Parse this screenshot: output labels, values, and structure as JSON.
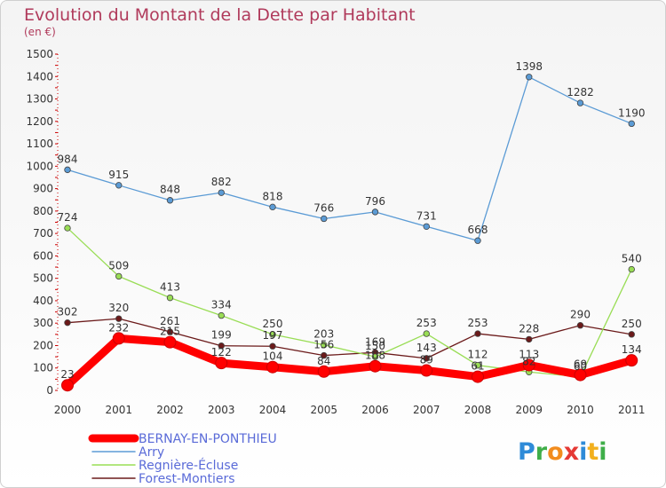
{
  "chart_data": {
    "type": "line",
    "title": "Evolution du Montant de la Dette par Habitant",
    "subtitle": "(en €)",
    "xlabel": "",
    "ylabel": "",
    "ylim": [
      0,
      1500
    ],
    "yticks": [
      0,
      100,
      200,
      300,
      400,
      500,
      600,
      700,
      800,
      900,
      1000,
      1100,
      1200,
      1300,
      1400,
      1500
    ],
    "grid": false,
    "legend_position": "bottom-left",
    "categories": [
      "2000",
      "2001",
      "2002",
      "2003",
      "2004",
      "2005",
      "2006",
      "2007",
      "2008",
      "2009",
      "2010",
      "2011"
    ],
    "series": [
      {
        "name": "BERNAY-EN-PONTHIEU",
        "color": "#ff0000",
        "values": [
          23,
          232,
          215,
          122,
          104,
          84,
          108,
          89,
          61,
          113,
          69,
          134
        ]
      },
      {
        "name": "Arry",
        "color": "#5b9bd5",
        "values": [
          984,
          915,
          848,
          882,
          818,
          766,
          796,
          731,
          668,
          1398,
          1282,
          1190
        ]
      },
      {
        "name": "Regnière-Écluse",
        "color": "#99dd55",
        "values": [
          724,
          509,
          413,
          334,
          250,
          203,
          150,
          253,
          112,
          82,
          60,
          540
        ]
      },
      {
        "name": "Forest-Montiers",
        "color": "#6b1a1a",
        "values": [
          302,
          320,
          261,
          199,
          197,
          156,
          169,
          143,
          253,
          228,
          290,
          250
        ]
      }
    ]
  },
  "brand": {
    "letters": [
      "P",
      "r",
      "o",
      "x",
      "i",
      "t",
      "i"
    ],
    "colors": [
      "#2e8bd8",
      "#3fae49",
      "#f28c1e",
      "#e53935",
      "#2e8bd8",
      "#f2b01e",
      "#3fae49"
    ]
  }
}
